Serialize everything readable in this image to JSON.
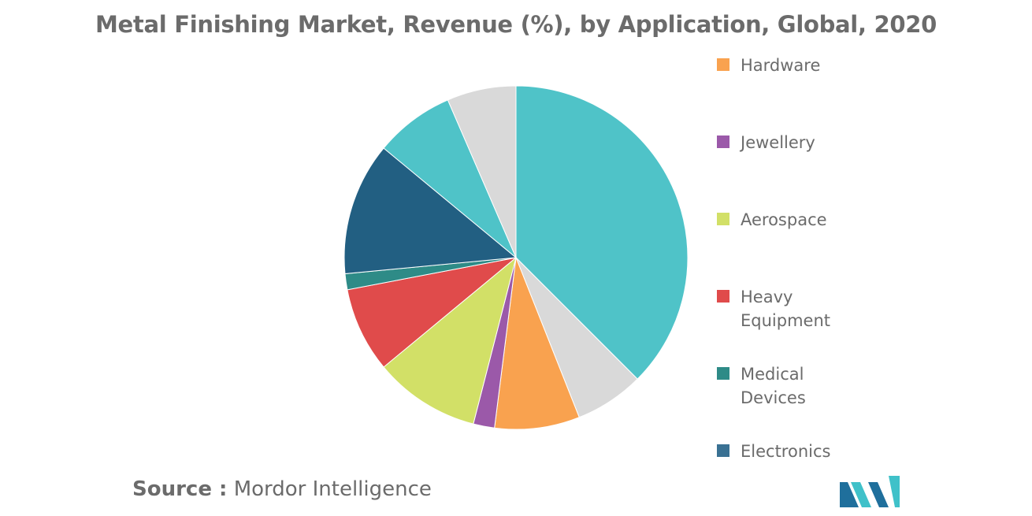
{
  "chart_data": {
    "type": "pie",
    "title": "Metal Finishing Market, Revenue (%), by Application, Global, 2020",
    "slices": [
      {
        "label": "",
        "value": 37.5,
        "color": "#4fc3c8"
      },
      {
        "label": "",
        "value": 6.5,
        "color": "#d9d9d9"
      },
      {
        "label": "Hardware",
        "value": 8,
        "color": "#f9a24f"
      },
      {
        "label": "Jewellery",
        "value": 2,
        "color": "#9b59a9"
      },
      {
        "label": "Aerospace",
        "value": 10,
        "color": "#d2e067"
      },
      {
        "label": "Heavy Equipment",
        "value": 8,
        "color": "#e04b4b"
      },
      {
        "label": "Medical Devices",
        "value": 1.5,
        "color": "#2e8b87"
      },
      {
        "label": "Electronics",
        "value": 12.5,
        "color": "#225f82"
      },
      {
        "label": "",
        "value": 7.5,
        "color": "#4fc3c8"
      },
      {
        "label": "",
        "value": 6.5,
        "color": "#d9d9d9"
      }
    ],
    "legend": {
      "position": "right",
      "items": [
        {
          "label": "Hardware",
          "color": "#f9a24f"
        },
        {
          "label": "Jewellery",
          "color": "#9b59a9"
        },
        {
          "label": "Aerospace",
          "color": "#d2e067"
        },
        {
          "label": "Heavy Equipment",
          "color": "#e04b4b"
        },
        {
          "label": "Medical Devices",
          "color": "#2e8b87"
        },
        {
          "label": "Electronics",
          "color": "#3a7193"
        }
      ]
    }
  },
  "source": {
    "label": "Source :",
    "value": "Mordor Intelligence"
  },
  "logo": {
    "icon": "mordor-intelligence-logo",
    "colors": [
      "#1f6f9c",
      "#3fc1c9"
    ]
  }
}
